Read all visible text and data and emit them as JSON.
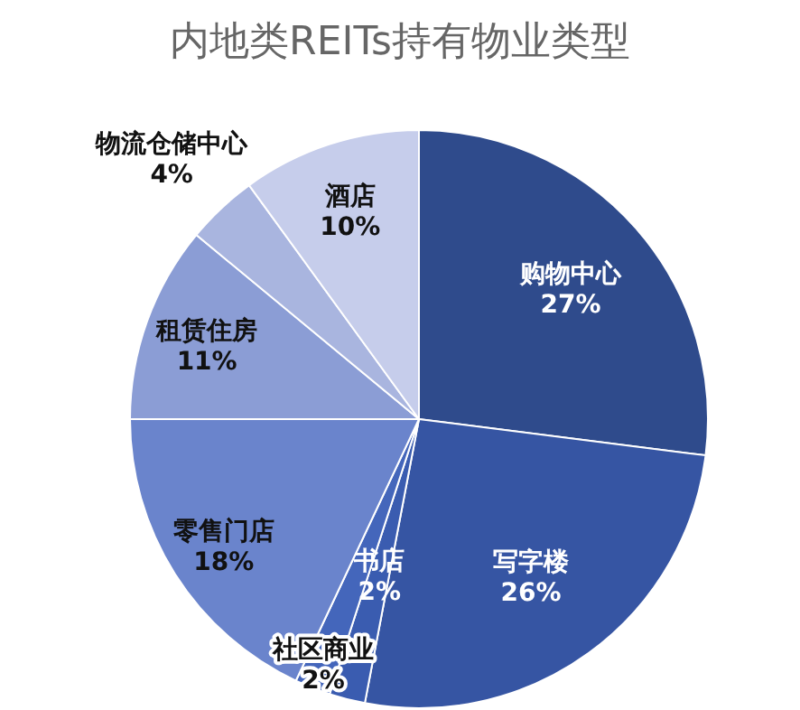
{
  "chart_data": {
    "type": "pie",
    "title": "内地类REITs持有物业类型",
    "categories": [
      "购物中心",
      "写字楼",
      "书店",
      "社区商业",
      "零售门店",
      "租赁住房",
      "物流仓储中心",
      "酒店"
    ],
    "values": [
      27,
      26,
      2,
      2,
      18,
      11,
      4,
      10
    ],
    "colors": [
      "#2f4b8c",
      "#3655a3",
      "#3a5cb0",
      "#4466bb",
      "#6a84cc",
      "#8b9dd5",
      "#a9b5df",
      "#c6cdeb"
    ],
    "value_labels": [
      "27%",
      "26%",
      "2%",
      "2%",
      "18%",
      "11%",
      "4%",
      "10%"
    ],
    "legend": false
  }
}
